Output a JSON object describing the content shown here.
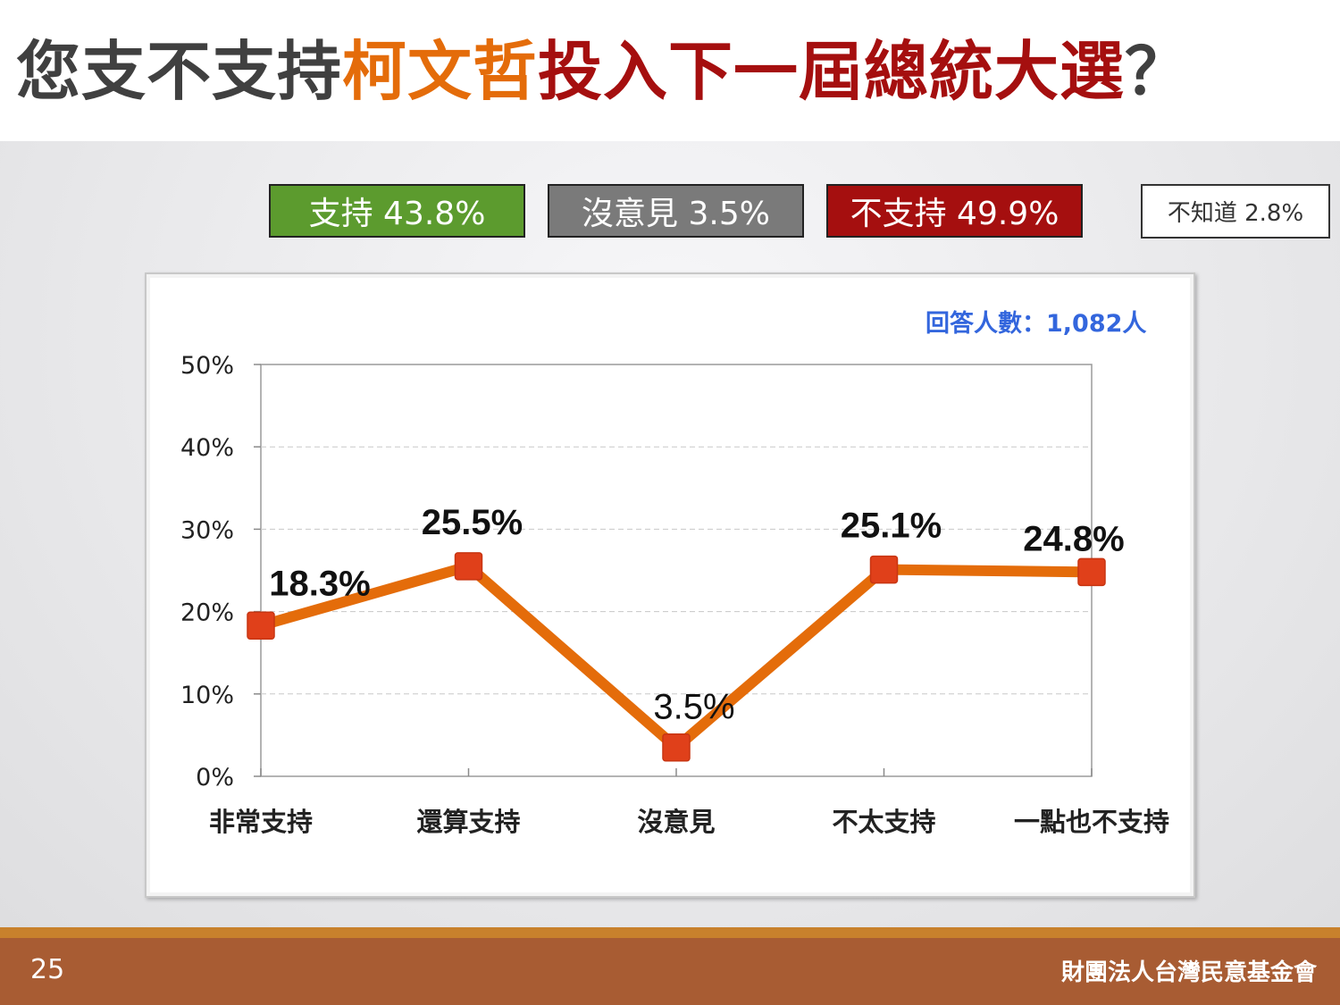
{
  "header": {
    "title_part1": "您支不支持",
    "title_part2": "柯文哲",
    "title_part3": "投入下一屆總統大選",
    "title_part4": "？"
  },
  "summary": {
    "support": "支持 43.8%",
    "neutral": "沒意見 3.5%",
    "oppose": "不支持 49.9%",
    "unknown": "不知道 2.8%"
  },
  "respondents": "回答人數：1,082人",
  "chart_data": {
    "type": "line",
    "categories": [
      "非常支持",
      "還算支持",
      "沒意見",
      "不太支持",
      "一點也不支持"
    ],
    "series": [
      {
        "values": [
          18.3,
          25.5,
          3.5,
          25.1,
          24.8
        ],
        "labels": [
          "18.3%",
          "25.5%",
          "3.5%",
          "25.1%",
          "24.8%"
        ]
      }
    ],
    "ylim": [
      0,
      50
    ],
    "yticks": [
      0,
      10,
      20,
      30,
      40,
      50
    ],
    "ytick_labels": [
      "0%",
      "10%",
      "20%",
      "30%",
      "40%",
      "50%"
    ],
    "grid": true,
    "colors": {
      "line": "#e46c0a",
      "marker": "#e0401a"
    }
  },
  "colors": {
    "support": "#5c9b2e",
    "neutral": "#7a7a7a",
    "oppose": "#a50f0f",
    "title_accent": "#e46c0a",
    "title_red": "#a50f0f",
    "footer": "#a85c33"
  },
  "footer": {
    "page_number": "25",
    "organization": "財團法人台灣民意基金會"
  }
}
